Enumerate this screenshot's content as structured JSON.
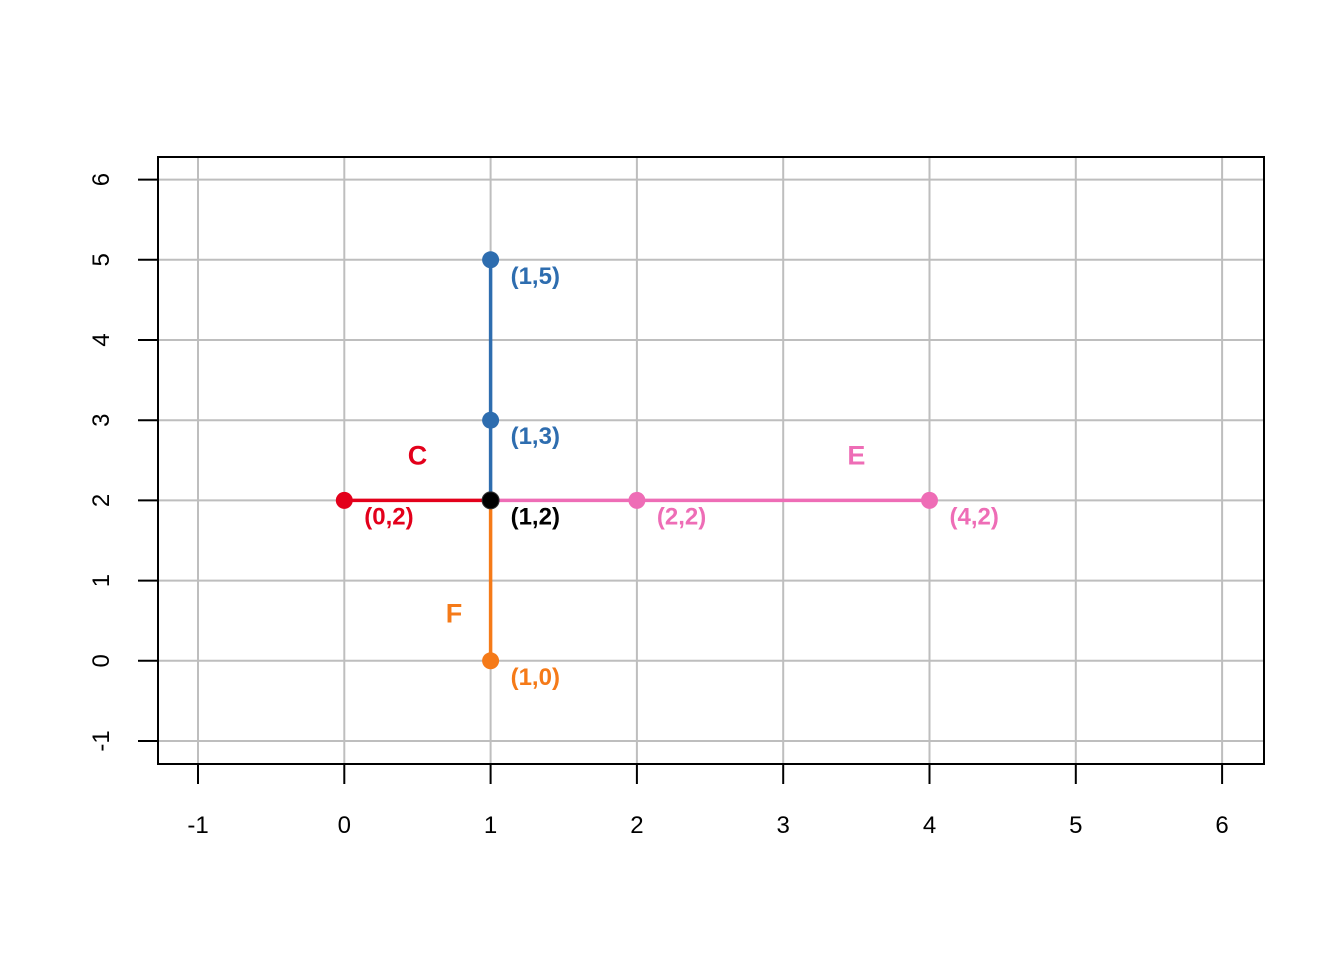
{
  "chart_data": {
    "type": "scatter",
    "title": "",
    "xlabel": "",
    "ylabel": "",
    "xlim": [
      -1,
      6
    ],
    "ylim": [
      -1,
      6
    ],
    "x_ticks": [
      "-1",
      "0",
      "1",
      "2",
      "3",
      "4",
      "5",
      "6"
    ],
    "y_ticks": [
      "-1",
      "0",
      "1",
      "2",
      "3",
      "4",
      "5",
      "6"
    ],
    "grid": true,
    "colors": {
      "red": "#E3001B",
      "blue": "#2E6DAF",
      "pink": "#EE6DB6",
      "orange": "#F57A18",
      "black": "#000000",
      "grid": "#BEBEBE"
    },
    "segments": [
      {
        "name": "C",
        "x": [
          0,
          1
        ],
        "y": [
          2,
          2
        ],
        "color": "red"
      },
      {
        "name": "",
        "x": [
          1,
          1
        ],
        "y": [
          2,
          5
        ],
        "color": "blue"
      },
      {
        "name": "E",
        "x": [
          1,
          4
        ],
        "y": [
          2,
          2
        ],
        "color": "pink"
      },
      {
        "name": "F",
        "x": [
          1,
          1
        ],
        "y": [
          2,
          0
        ],
        "color": "orange"
      }
    ],
    "segment_labels": [
      {
        "text": "C",
        "x": 0.5,
        "y": 2.45,
        "color": "red"
      },
      {
        "text": "E",
        "x": 3.5,
        "y": 2.45,
        "color": "pink"
      },
      {
        "text": "F",
        "x": 0.75,
        "y": 0.48,
        "color": "orange"
      }
    ],
    "points": [
      {
        "x": 1,
        "y": 5,
        "label": "(1,5)",
        "color": "blue"
      },
      {
        "x": 1,
        "y": 3,
        "label": "(1,3)",
        "color": "blue"
      },
      {
        "x": 0,
        "y": 2,
        "label": "(0,2)",
        "color": "red"
      },
      {
        "x": 2,
        "y": 2,
        "label": "(2,2)",
        "color": "pink"
      },
      {
        "x": 4,
        "y": 2,
        "label": "(4,2)",
        "color": "pink"
      },
      {
        "x": 1,
        "y": 0,
        "label": "(1,0)",
        "color": "orange"
      },
      {
        "x": 1,
        "y": 2,
        "label": "(1,2)",
        "color": "black"
      }
    ]
  }
}
